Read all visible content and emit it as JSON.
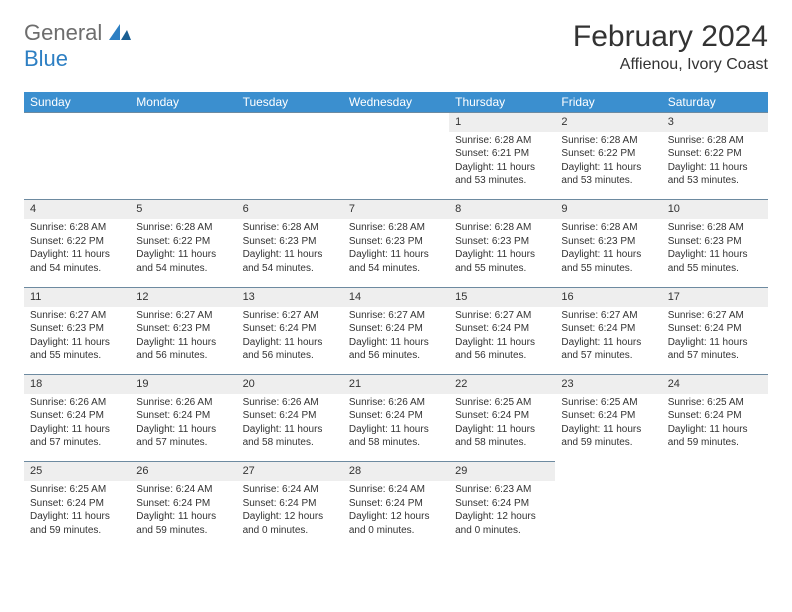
{
  "logo": {
    "part1": "General",
    "part2": "Blue"
  },
  "title": "February 2024",
  "location": "Affienou, Ivory Coast",
  "colors": {
    "header_bg": "#3b8fcf",
    "header_text": "#ffffff",
    "daynum_bg": "#eeeeee",
    "border_top": "#6d8aa0",
    "logo_gray": "#6d6d6d",
    "logo_blue": "#2d7fc3"
  },
  "daynames": [
    "Sunday",
    "Monday",
    "Tuesday",
    "Wednesday",
    "Thursday",
    "Friday",
    "Saturday"
  ],
  "weeks": [
    {
      "nums": [
        "",
        "",
        "",
        "",
        "1",
        "2",
        "3"
      ],
      "details": [
        "",
        "",
        "",
        "",
        "Sunrise: 6:28 AM\nSunset: 6:21 PM\nDaylight: 11 hours and 53 minutes.",
        "Sunrise: 6:28 AM\nSunset: 6:22 PM\nDaylight: 11 hours and 53 minutes.",
        "Sunrise: 6:28 AM\nSunset: 6:22 PM\nDaylight: 11 hours and 53 minutes."
      ]
    },
    {
      "nums": [
        "4",
        "5",
        "6",
        "7",
        "8",
        "9",
        "10"
      ],
      "details": [
        "Sunrise: 6:28 AM\nSunset: 6:22 PM\nDaylight: 11 hours and 54 minutes.",
        "Sunrise: 6:28 AM\nSunset: 6:22 PM\nDaylight: 11 hours and 54 minutes.",
        "Sunrise: 6:28 AM\nSunset: 6:23 PM\nDaylight: 11 hours and 54 minutes.",
        "Sunrise: 6:28 AM\nSunset: 6:23 PM\nDaylight: 11 hours and 54 minutes.",
        "Sunrise: 6:28 AM\nSunset: 6:23 PM\nDaylight: 11 hours and 55 minutes.",
        "Sunrise: 6:28 AM\nSunset: 6:23 PM\nDaylight: 11 hours and 55 minutes.",
        "Sunrise: 6:28 AM\nSunset: 6:23 PM\nDaylight: 11 hours and 55 minutes."
      ]
    },
    {
      "nums": [
        "11",
        "12",
        "13",
        "14",
        "15",
        "16",
        "17"
      ],
      "details": [
        "Sunrise: 6:27 AM\nSunset: 6:23 PM\nDaylight: 11 hours and 55 minutes.",
        "Sunrise: 6:27 AM\nSunset: 6:23 PM\nDaylight: 11 hours and 56 minutes.",
        "Sunrise: 6:27 AM\nSunset: 6:24 PM\nDaylight: 11 hours and 56 minutes.",
        "Sunrise: 6:27 AM\nSunset: 6:24 PM\nDaylight: 11 hours and 56 minutes.",
        "Sunrise: 6:27 AM\nSunset: 6:24 PM\nDaylight: 11 hours and 56 minutes.",
        "Sunrise: 6:27 AM\nSunset: 6:24 PM\nDaylight: 11 hours and 57 minutes.",
        "Sunrise: 6:27 AM\nSunset: 6:24 PM\nDaylight: 11 hours and 57 minutes."
      ]
    },
    {
      "nums": [
        "18",
        "19",
        "20",
        "21",
        "22",
        "23",
        "24"
      ],
      "details": [
        "Sunrise: 6:26 AM\nSunset: 6:24 PM\nDaylight: 11 hours and 57 minutes.",
        "Sunrise: 6:26 AM\nSunset: 6:24 PM\nDaylight: 11 hours and 57 minutes.",
        "Sunrise: 6:26 AM\nSunset: 6:24 PM\nDaylight: 11 hours and 58 minutes.",
        "Sunrise: 6:26 AM\nSunset: 6:24 PM\nDaylight: 11 hours and 58 minutes.",
        "Sunrise: 6:25 AM\nSunset: 6:24 PM\nDaylight: 11 hours and 58 minutes.",
        "Sunrise: 6:25 AM\nSunset: 6:24 PM\nDaylight: 11 hours and 59 minutes.",
        "Sunrise: 6:25 AM\nSunset: 6:24 PM\nDaylight: 11 hours and 59 minutes."
      ]
    },
    {
      "nums": [
        "25",
        "26",
        "27",
        "28",
        "29",
        "",
        ""
      ],
      "details": [
        "Sunrise: 6:25 AM\nSunset: 6:24 PM\nDaylight: 11 hours and 59 minutes.",
        "Sunrise: 6:24 AM\nSunset: 6:24 PM\nDaylight: 11 hours and 59 minutes.",
        "Sunrise: 6:24 AM\nSunset: 6:24 PM\nDaylight: 12 hours and 0 minutes.",
        "Sunrise: 6:24 AM\nSunset: 6:24 PM\nDaylight: 12 hours and 0 minutes.",
        "Sunrise: 6:23 AM\nSunset: 6:24 PM\nDaylight: 12 hours and 0 minutes.",
        "",
        ""
      ]
    }
  ]
}
